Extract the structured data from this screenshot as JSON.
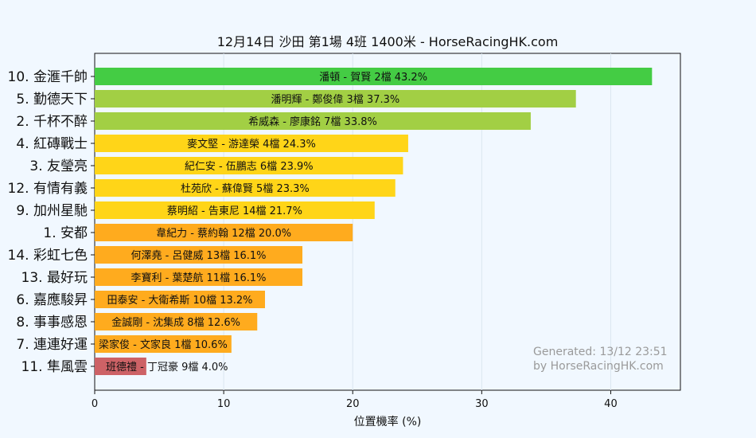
{
  "chart_data": {
    "type": "bar",
    "orientation": "horizontal",
    "title": "12月14日  沙田  第1場  4班  1400米 - HorseRacingHK.com",
    "xlabel": "位置機率 (%)",
    "xlim": [
      0,
      45.4
    ],
    "xticks": [
      "0",
      "10",
      "20",
      "30",
      "40"
    ],
    "grid": true,
    "categories": [
      "10. 金滙千帥",
      "5. 勤德天下",
      "2. 千杯不醉",
      "4. 紅磚戰士",
      "3. 友瑩亮",
      "12. 有情有義",
      "9. 加州星馳",
      "1. 安都",
      "14. 彩虹七色",
      "13. 最好玩",
      "6. 嘉應駿昇",
      "8. 事事感恩",
      "7. 連連好運",
      "11. 隼風雲"
    ],
    "values": [
      43.2,
      37.3,
      33.8,
      24.3,
      23.9,
      23.3,
      21.7,
      20.0,
      16.1,
      16.1,
      13.2,
      12.6,
      10.6,
      4.0
    ],
    "bar_labels": [
      "潘頓 - 賀賢 2檔  43.2%",
      "潘明輝 - 鄭俊偉 3檔  37.3%",
      "希威森 - 廖康銘 7檔  33.8%",
      "麥文堅 - 游達榮 4檔  24.3%",
      "紀仁安 - 伍鵬志 6檔  23.9%",
      "杜苑欣 - 蘇偉賢 5檔  23.3%",
      "蔡明紹 - 告東尼 14檔  21.7%",
      "韋紀力 - 蔡約翰 12檔  20.0%",
      "何澤堯 - 呂健威 13檔  16.1%",
      "李寶利 - 葉楚航 11檔  16.1%",
      "田泰安 - 大衛希斯 10檔  13.2%",
      "金誠剛 - 沈集成 8檔  12.6%",
      "梁家俊 - 文家良 1檔  10.6%",
      "班德禮 - 丁冠豪 9檔  4.0%"
    ],
    "colors": [
      "#44cc44",
      "#a2cf44",
      "#a2cf44",
      "#ffd518",
      "#ffd518",
      "#ffd518",
      "#ffd518",
      "#ffab1e",
      "#ffab1e",
      "#ffab1e",
      "#ffab1e",
      "#ffab1e",
      "#ffab1e",
      "#cd6266"
    ],
    "annotation": [
      "Generated: 13/12 23:51",
      "by HorseRacingHK.com"
    ]
  }
}
